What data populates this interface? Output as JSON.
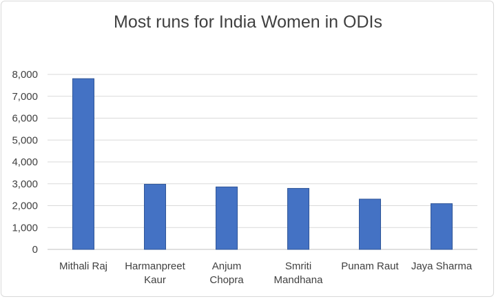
{
  "chart_data": {
    "type": "bar",
    "title": "Most runs for India Women in ODIs",
    "xlabel": "",
    "ylabel": "",
    "categories": [
      [
        "Mithali Raj"
      ],
      [
        "Harmanpreet",
        "Kaur"
      ],
      [
        "Anjum",
        "Chopra"
      ],
      [
        "Smriti",
        "Mandhana"
      ],
      [
        "Punam Raut"
      ],
      [
        "Jaya Sharma"
      ]
    ],
    "values": [
      7805,
      2979,
      2856,
      2789,
      2299,
      2091
    ],
    "ylim": [
      0,
      8000
    ],
    "yticks": [
      0,
      1000,
      2000,
      3000,
      4000,
      5000,
      6000,
      7000,
      8000
    ],
    "ytick_labels": [
      "0",
      "1,000",
      "2,000",
      "3,000",
      "4,000",
      "5,000",
      "6,000",
      "7,000",
      "8,000"
    ],
    "grid": true,
    "legend": "none",
    "bar_color": "#4472C4",
    "bar_edge_color": "#2F5597",
    "grid_color": "#d9d9d9"
  }
}
